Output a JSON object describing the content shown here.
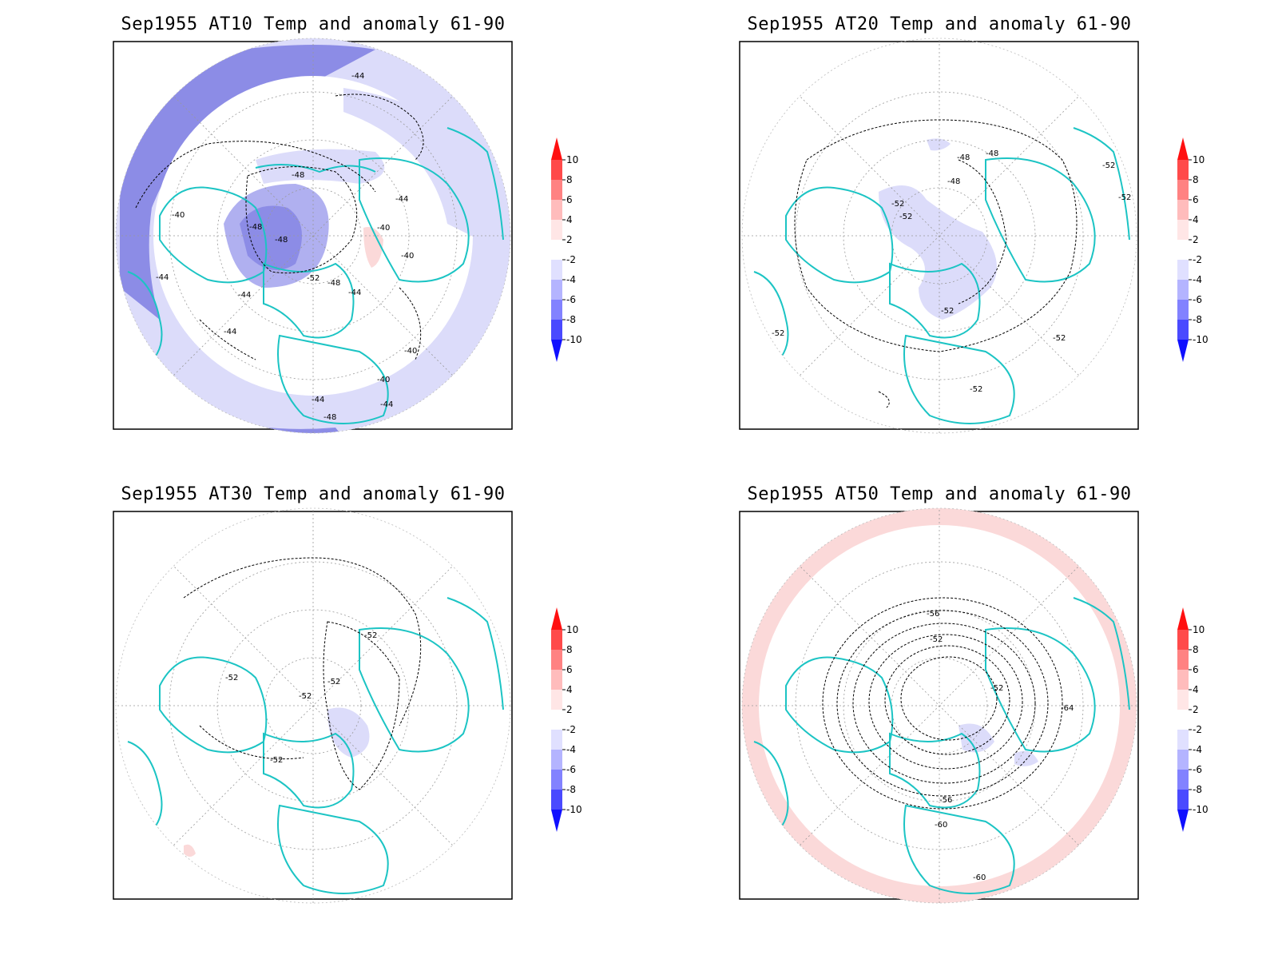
{
  "colorbar": {
    "levels": [
      "10",
      "8",
      "6",
      "4",
      "2",
      "-2",
      "-4",
      "-6",
      "-8",
      "-10"
    ],
    "colors": [
      "#ff1010",
      "#ff4a4a",
      "#ff8282",
      "#ffbcbc",
      "#ffe6e6",
      "#ffffff",
      "#e0e0ff",
      "#b4b4ff",
      "#8282ff",
      "#4a4aff",
      "#1010ff"
    ]
  },
  "style": {
    "coast": "#1cc4c4",
    "anom_neg_light": "#dcdcfa",
    "anom_neg_mid": "#b0b0f0",
    "anom_neg_dark": "#8c8ce6",
    "anom_pos_light": "#fbd9d9"
  },
  "panels": [
    {
      "id": "at10",
      "title": "Sep1955 AT10 Temp and anomaly 61-90",
      "contour_labels": [
        "-44",
        "-48",
        "-40",
        "-44",
        "-48",
        "-48",
        "-52",
        "-48",
        "-44",
        "-40",
        "-40",
        "-44",
        "-44",
        "-44",
        "-40",
        "-40",
        "-44",
        "-44",
        "-48"
      ]
    },
    {
      "id": "at20",
      "title": "Sep1955 AT20 Temp and anomaly 61-90",
      "contour_labels": [
        "-48",
        "-48",
        "-48",
        "-52",
        "-52",
        "-52",
        "-52",
        "-52",
        "-52",
        "-52",
        "-52"
      ]
    },
    {
      "id": "at30",
      "title": "Sep1955 AT30 Temp and anomaly 61-90",
      "contour_labels": [
        "-52",
        "-52",
        "-52",
        "-52",
        "-52"
      ]
    },
    {
      "id": "at50",
      "title": "Sep1955 AT50 Temp and anomaly 61-90",
      "contour_labels": [
        "-56",
        "-52",
        "-52",
        "-64",
        "-56",
        "-60",
        "-60"
      ]
    }
  ]
}
